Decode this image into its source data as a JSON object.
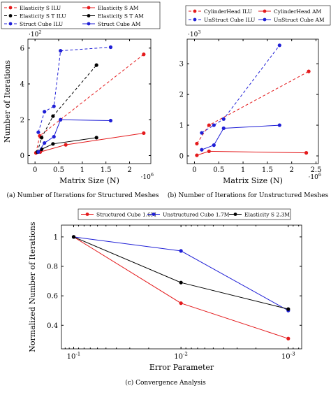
{
  "captions": {
    "a": "(a) Number of Iterations for Structured Meshes",
    "b": "(b) Number of Iterations for Unstructured Meshes",
    "c": "(c) Convergence Analysis"
  },
  "colors": {
    "red": "#e41a1c",
    "blue": "#1f1fd6",
    "black": "#000000"
  },
  "chart_data": [
    {
      "id": "a",
      "type": "line",
      "xlabel": "Matrix Size (N)",
      "ylabel": "Number of Iterations",
      "x_multiplier": "·10^6",
      "y_multiplier": "·10^2",
      "xlim": [
        -0.15,
        2.45
      ],
      "ylim": [
        -0.45,
        6.5
      ],
      "xticks": [
        0,
        0.5,
        1,
        1.5,
        2
      ],
      "xtick_labels": [
        "0",
        "0.5",
        "1",
        "1.5",
        "2"
      ],
      "yticks": [
        0,
        2,
        4,
        6
      ],
      "ytick_labels": [
        "0",
        "2",
        "4",
        "6"
      ],
      "legend": {
        "placement": "top",
        "columns": 2
      },
      "series": [
        {
          "name": "Elasticity S ILU",
          "color": "red",
          "dash": true,
          "x": [
            0.02,
            0.1,
            2.3
          ],
          "y": [
            0.15,
            1.1,
            5.65
          ]
        },
        {
          "name": "Elasticity S AM",
          "color": "red",
          "dash": false,
          "x": [
            0.02,
            0.11,
            0.65,
            2.3
          ],
          "y": [
            0.15,
            0.2,
            0.6,
            1.25
          ]
        },
        {
          "name": "Elasticity S T ILU",
          "color": "black",
          "dash": true,
          "x": [
            0.05,
            0.14,
            0.38,
            1.3
          ],
          "y": [
            0.2,
            1.0,
            2.2,
            5.05
          ]
        },
        {
          "name": "Elasticity S T AM",
          "color": "black",
          "dash": false,
          "x": [
            0.05,
            0.14,
            0.38,
            1.3
          ],
          "y": [
            0.2,
            0.35,
            0.65,
            1.0
          ]
        },
        {
          "name": "Struct Cube ILU",
          "color": "blue",
          "dash": true,
          "x": [
            0.07,
            0.2,
            0.4,
            0.54,
            1.6
          ],
          "y": [
            1.3,
            2.45,
            2.75,
            5.85,
            6.05
          ]
        },
        {
          "name": "Struct Cube AM",
          "color": "blue",
          "dash": false,
          "x": [
            0.07,
            0.2,
            0.4,
            0.54,
            1.6
          ],
          "y": [
            0.2,
            0.7,
            1.05,
            2.0,
            1.95
          ]
        }
      ]
    },
    {
      "id": "b",
      "type": "line",
      "xlabel": "Matrix Size (N)",
      "ylabel": "",
      "x_multiplier": "·10^6",
      "y_multiplier": "·10^3",
      "xlim": [
        -0.15,
        2.55
      ],
      "ylim": [
        -0.25,
        3.8
      ],
      "xticks": [
        0,
        0.5,
        1,
        1.5,
        2,
        2.5
      ],
      "xtick_labels": [
        "0",
        "0.5",
        "1",
        "1.5",
        "2",
        "2.5"
      ],
      "yticks": [
        0,
        1,
        2,
        3
      ],
      "ytick_labels": [
        "0",
        "1",
        "2",
        "3"
      ],
      "legend": {
        "placement": "top",
        "columns": 2
      },
      "series": [
        {
          "name": "CylinderHead ILU",
          "color": "red",
          "dash": true,
          "x": [
            0.05,
            0.3,
            2.35
          ],
          "y": [
            0.4,
            1.0,
            2.75
          ]
        },
        {
          "name": "CylinderHead AM",
          "color": "red",
          "dash": false,
          "x": [
            0.05,
            0.3,
            2.3
          ],
          "y": [
            0.02,
            0.15,
            0.1
          ]
        },
        {
          "name": "UnStruct Cube ILU",
          "color": "blue",
          "dash": true,
          "x": [
            0.15,
            0.4,
            0.6,
            1.75
          ],
          "y": [
            0.75,
            1.0,
            1.2,
            3.6
          ]
        },
        {
          "name": "UnStruct Cube AM",
          "color": "blue",
          "dash": false,
          "x": [
            0.15,
            0.4,
            0.6,
            1.75
          ],
          "y": [
            0.2,
            0.35,
            0.9,
            1.0
          ]
        }
      ]
    },
    {
      "id": "c",
      "type": "line",
      "xlabel": "Error Parameter",
      "ylabel": "Normalized Number of Iterations",
      "xscale": "log-reversed",
      "xlim": [
        0.13,
        0.00075
      ],
      "ylim": [
        0.24,
        1.08
      ],
      "xticks": [
        0.1,
        0.01,
        0.001
      ],
      "xtick_labels": [
        "10^{-1}",
        "10^{-2}",
        "10^{-3}"
      ],
      "yticks": [
        0.4,
        0.6,
        0.8,
        1.0
      ],
      "ytick_labels": [
        "0.4",
        "0.6",
        "0.8",
        "1"
      ],
      "legend": {
        "placement": "top",
        "columns": 3
      },
      "series": [
        {
          "name": "Structured Cube 1.6M",
          "color": "red",
          "dash": false,
          "x": [
            0.1,
            0.01,
            0.001
          ],
          "y": [
            1.0,
            0.55,
            0.31
          ]
        },
        {
          "name": "Unstructured Cube 1.7M",
          "color": "blue",
          "dash": false,
          "x": [
            0.1,
            0.01,
            0.001
          ],
          "y": [
            1.0,
            0.905,
            0.5
          ]
        },
        {
          "name": "Elasticity S 2.3M",
          "color": "black",
          "dash": false,
          "x": [
            0.1,
            0.01,
            0.001
          ],
          "y": [
            1.0,
            0.69,
            0.51
          ]
        }
      ]
    }
  ]
}
